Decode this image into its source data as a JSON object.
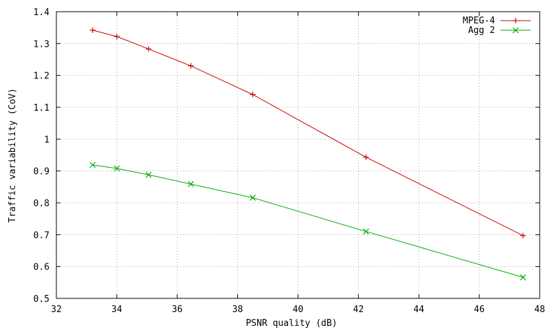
{
  "chart_data": {
    "type": "line",
    "xlabel": "PSNR quality (dB)",
    "ylabel": "Traffic variability (CoV)",
    "xlim": [
      32,
      48
    ],
    "ylim": [
      0.5,
      1.4
    ],
    "x_ticks": [
      32,
      34,
      36,
      38,
      40,
      42,
      44,
      46,
      48
    ],
    "y_ticks": [
      0.5,
      0.6,
      0.7,
      0.8,
      0.9,
      1,
      1.1,
      1.2,
      1.3,
      1.4
    ],
    "grid": true,
    "legend_position": "top-right",
    "series": [
      {
        "name": "MPEG-4",
        "color": "#cc0000",
        "marker": "plus",
        "x": [
          33.2,
          34.0,
          35.05,
          36.45,
          38.5,
          42.25,
          47.45
        ],
        "y": [
          1.342,
          1.322,
          1.283,
          1.23,
          1.14,
          0.943,
          0.697
        ]
      },
      {
        "name": "Agg 2",
        "color": "#00aa00",
        "marker": "cross",
        "x": [
          33.2,
          34.0,
          35.05,
          36.45,
          38.5,
          42.25,
          47.45
        ],
        "y": [
          0.919,
          0.908,
          0.888,
          0.859,
          0.816,
          0.71,
          0.566
        ]
      }
    ]
  }
}
